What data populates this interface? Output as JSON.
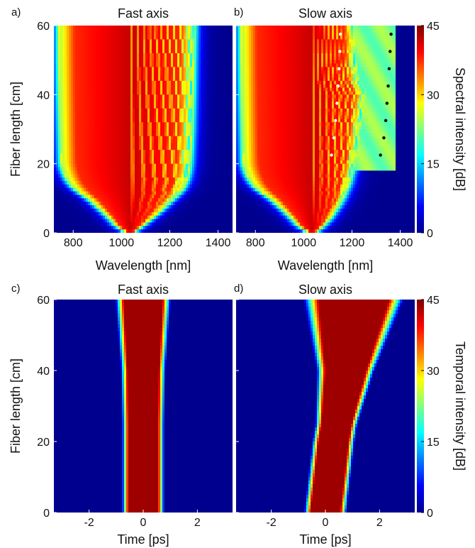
{
  "chart_data": [
    {
      "type": "heatmap",
      "panel_label": "a)",
      "title": "Fast axis",
      "xlabel": "Wavelength [nm]",
      "ylabel": "Fiber length [cm]",
      "xlim": [
        720,
        1460
      ],
      "ylim": [
        0,
        60
      ],
      "xticks": [
        800,
        1000,
        1200,
        1400
      ],
      "yticks": [
        0,
        20,
        40,
        60
      ],
      "field": {
        "center": 1035,
        "left_edge": [
          [
            0,
            1025
          ],
          [
            2,
            980
          ],
          [
            4,
            955
          ],
          [
            6,
            925
          ],
          [
            8,
            895
          ],
          [
            10,
            862
          ],
          [
            12,
            820
          ],
          [
            14,
            790
          ],
          [
            16,
            772
          ],
          [
            18,
            760
          ],
          [
            20,
            752
          ],
          [
            30,
            748
          ],
          [
            40,
            745
          ],
          [
            50,
            743
          ],
          [
            60,
            742
          ]
        ],
        "right_edge": [
          [
            0,
            1045
          ],
          [
            2,
            1085
          ],
          [
            4,
            1120
          ],
          [
            6,
            1155
          ],
          [
            8,
            1185
          ],
          [
            10,
            1215
          ],
          [
            12,
            1245
          ],
          [
            14,
            1262
          ],
          [
            16,
            1272
          ],
          [
            18,
            1278
          ],
          [
            20,
            1282
          ],
          [
            30,
            1290
          ],
          [
            40,
            1294
          ],
          [
            50,
            1297
          ],
          [
            60,
            1300
          ]
        ],
        "asymmetric": false
      }
    },
    {
      "type": "heatmap",
      "panel_label": "b)",
      "title": "Slow axis",
      "xlabel": "Wavelength [nm]",
      "ylabel": "",
      "xlim": [
        720,
        1460
      ],
      "ylim": [
        0,
        60
      ],
      "xticks": [
        800,
        1000,
        1200,
        1400
      ],
      "yticks": [
        0,
        20,
        40,
        60
      ],
      "field": {
        "center": 1035,
        "left_edge": [
          [
            0,
            1025
          ],
          [
            2,
            980
          ],
          [
            4,
            955
          ],
          [
            6,
            925
          ],
          [
            8,
            895
          ],
          [
            10,
            862
          ],
          [
            12,
            820
          ],
          [
            14,
            790
          ],
          [
            16,
            772
          ],
          [
            18,
            760
          ],
          [
            20,
            752
          ],
          [
            30,
            748
          ],
          [
            40,
            745
          ],
          [
            50,
            743
          ],
          [
            60,
            742
          ]
        ],
        "right_edge": [
          [
            0,
            1045
          ],
          [
            2,
            1080
          ],
          [
            4,
            1105
          ],
          [
            6,
            1125
          ],
          [
            8,
            1145
          ],
          [
            10,
            1160
          ],
          [
            14,
            1185
          ],
          [
            18,
            1200
          ],
          [
            22,
            1215
          ],
          [
            30,
            1230
          ],
          [
            36,
            1245
          ],
          [
            40,
            1258
          ],
          [
            44,
            1225
          ],
          [
            50,
            1212
          ],
          [
            60,
            1205
          ]
        ],
        "asymmetric": true
      },
      "markers": [
        {
          "color": "white",
          "points": [
            [
              1115,
              22.5
            ],
            [
              1125,
              27.5
            ],
            [
              1132,
              32.5
            ],
            [
              1138,
              37.5
            ],
            [
              1143,
              42.5
            ],
            [
              1147,
              47.5
            ],
            [
              1150,
              52.5
            ],
            [
              1152,
              57.5
            ]
          ]
        },
        {
          "color": "black",
          "points": [
            [
              1318,
              22.5
            ],
            [
              1332,
              27.5
            ],
            [
              1340,
              32.5
            ],
            [
              1345,
              37.5
            ],
            [
              1350,
              42.5
            ],
            [
              1354,
              47.5
            ],
            [
              1358,
              52.5
            ],
            [
              1362,
              57.5
            ]
          ]
        }
      ]
    },
    {
      "type": "heatmap",
      "panel_label": "c)",
      "title": "Fast axis",
      "xlabel": "Time [ps]",
      "ylabel": "Fiber length [cm]",
      "xlim": [
        -3.3,
        3.3
      ],
      "ylim": [
        0,
        60
      ],
      "xticks": [
        -2,
        0,
        2
      ],
      "yticks": [
        0,
        20,
        40,
        60
      ],
      "field": {
        "center": [
          [
            0,
            0.0
          ],
          [
            60,
            0.0
          ]
        ],
        "half_width": [
          [
            0,
            0.55
          ],
          [
            25,
            0.55
          ],
          [
            40,
            0.58
          ],
          [
            60,
            0.72
          ]
        ]
      }
    },
    {
      "type": "heatmap",
      "panel_label": "d)",
      "title": "Slow axis",
      "xlabel": "Time [ps]",
      "ylabel": "",
      "xlim": [
        -3.3,
        3.3
      ],
      "ylim": [
        0,
        60
      ],
      "xticks": [
        -2,
        0,
        2
      ],
      "yticks": [
        0,
        20,
        40,
        60
      ],
      "field": {
        "center": [
          [
            0,
            0.0
          ],
          [
            20,
            0.3
          ],
          [
            40,
            0.75
          ],
          [
            60,
            1.05
          ]
        ],
        "half_width": [
          [
            0,
            0.55
          ],
          [
            25,
            0.55
          ],
          [
            40,
            0.75
          ],
          [
            60,
            1.3
          ]
        ]
      }
    }
  ],
  "colorbars": [
    {
      "label": "Spectral intensity [dB]",
      "range": [
        0,
        45
      ],
      "ticks": [
        0,
        15,
        30,
        45
      ]
    },
    {
      "label": "Temporal intensity [dB]",
      "range": [
        0,
        45
      ],
      "ticks": [
        0,
        15,
        30,
        45
      ]
    }
  ],
  "colormap": [
    "#00008f",
    "#0000ff",
    "#00ffff",
    "#ffff00",
    "#ff0000",
    "#800000"
  ]
}
